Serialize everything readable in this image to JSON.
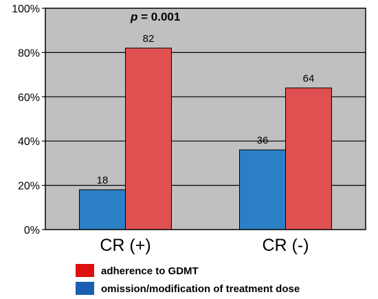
{
  "chart_data": {
    "type": "bar",
    "categories": [
      "CR (+)",
      "CR (-)"
    ],
    "series": [
      {
        "name": "omission/modification of treatment dose",
        "values": [
          18,
          36
        ],
        "color": "#2b80c5"
      },
      {
        "name": "adherence to GDMT",
        "values": [
          82,
          64
        ],
        "color": "#e05050"
      }
    ],
    "legend_colors": [
      "#dd1111",
      "#1a5fb0"
    ],
    "ylim": [
      0,
      100
    ],
    "ytick_values": [
      0,
      20,
      40,
      60,
      80,
      100
    ],
    "ytick_labels": [
      "0%",
      "20%",
      "40%",
      "60%",
      "80%",
      "100%"
    ],
    "data_labels": [
      [
        "18",
        "36"
      ],
      [
        "82",
        "64"
      ]
    ],
    "annotation": {
      "p": "p",
      "rest": " = 0.001"
    },
    "grid": true,
    "plot_background": "#c0c0c0",
    "legend_position": "bottom",
    "legend_order": [
      1,
      0
    ]
  }
}
